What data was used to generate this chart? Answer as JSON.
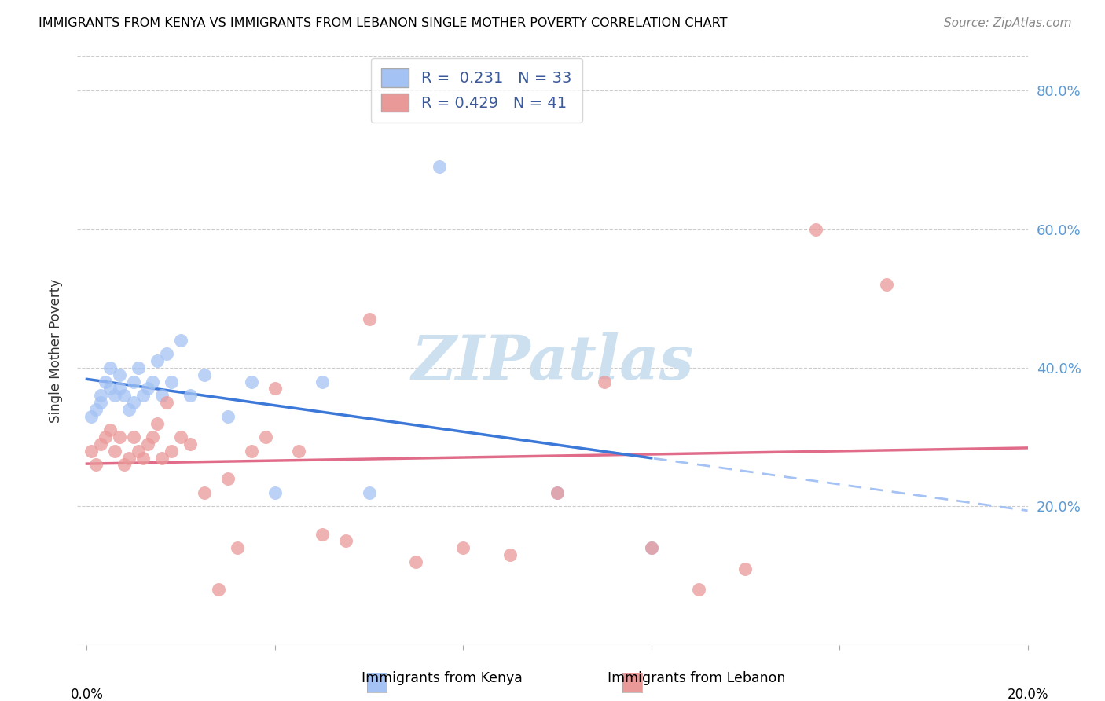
{
  "title": "IMMIGRANTS FROM KENYA VS IMMIGRANTS FROM LEBANON SINGLE MOTHER POVERTY CORRELATION CHART",
  "source": "Source: ZipAtlas.com",
  "ylabel": "Single Mother Poverty",
  "xlim": [
    0.0,
    0.2
  ],
  "ylim": [
    0.0,
    0.85
  ],
  "kenya_color": "#a4c2f4",
  "lebanon_color": "#ea9999",
  "kenya_line_color": "#3c78d8",
  "lebanon_line_color": "#e06c8a",
  "kenya_dash_color": "#a4c2f4",
  "kenya_R": 0.231,
  "kenya_N": 33,
  "lebanon_R": 0.429,
  "lebanon_N": 41,
  "kenya_scatter_x": [
    0.001,
    0.002,
    0.003,
    0.003,
    0.004,
    0.005,
    0.005,
    0.006,
    0.007,
    0.007,
    0.008,
    0.009,
    0.01,
    0.01,
    0.011,
    0.012,
    0.013,
    0.014,
    0.015,
    0.016,
    0.017,
    0.018,
    0.02,
    0.022,
    0.025,
    0.03,
    0.035,
    0.04,
    0.05,
    0.06,
    0.075,
    0.1,
    0.12
  ],
  "kenya_scatter_y": [
    0.33,
    0.34,
    0.35,
    0.36,
    0.38,
    0.37,
    0.4,
    0.36,
    0.37,
    0.39,
    0.36,
    0.34,
    0.35,
    0.38,
    0.4,
    0.36,
    0.37,
    0.38,
    0.41,
    0.36,
    0.42,
    0.38,
    0.44,
    0.36,
    0.39,
    0.33,
    0.38,
    0.22,
    0.38,
    0.22,
    0.69,
    0.22,
    0.14
  ],
  "lebanon_scatter_x": [
    0.001,
    0.002,
    0.003,
    0.004,
    0.005,
    0.006,
    0.007,
    0.008,
    0.009,
    0.01,
    0.011,
    0.012,
    0.013,
    0.014,
    0.015,
    0.016,
    0.017,
    0.018,
    0.02,
    0.022,
    0.025,
    0.028,
    0.03,
    0.032,
    0.035,
    0.038,
    0.04,
    0.045,
    0.05,
    0.055,
    0.06,
    0.07,
    0.08,
    0.09,
    0.1,
    0.11,
    0.12,
    0.13,
    0.14,
    0.155,
    0.17
  ],
  "lebanon_scatter_y": [
    0.28,
    0.26,
    0.29,
    0.3,
    0.31,
    0.28,
    0.3,
    0.26,
    0.27,
    0.3,
    0.28,
    0.27,
    0.29,
    0.3,
    0.32,
    0.27,
    0.35,
    0.28,
    0.3,
    0.29,
    0.22,
    0.08,
    0.24,
    0.14,
    0.28,
    0.3,
    0.37,
    0.28,
    0.16,
    0.15,
    0.47,
    0.12,
    0.14,
    0.13,
    0.22,
    0.38,
    0.14,
    0.08,
    0.11,
    0.6,
    0.52
  ],
  "legend_kenya_label": "Immigrants from Kenya",
  "legend_lebanon_label": "Immigrants from Lebanon",
  "watermark_text": "ZIPatlas",
  "watermark_color": "#cde0f0",
  "watermark_fontsize": 56,
  "y_tick_vals": [
    0.2,
    0.4,
    0.6,
    0.8
  ],
  "y_tick_labels": [
    "20.0%",
    "40.0%",
    "60.0%",
    "80.0%"
  ]
}
